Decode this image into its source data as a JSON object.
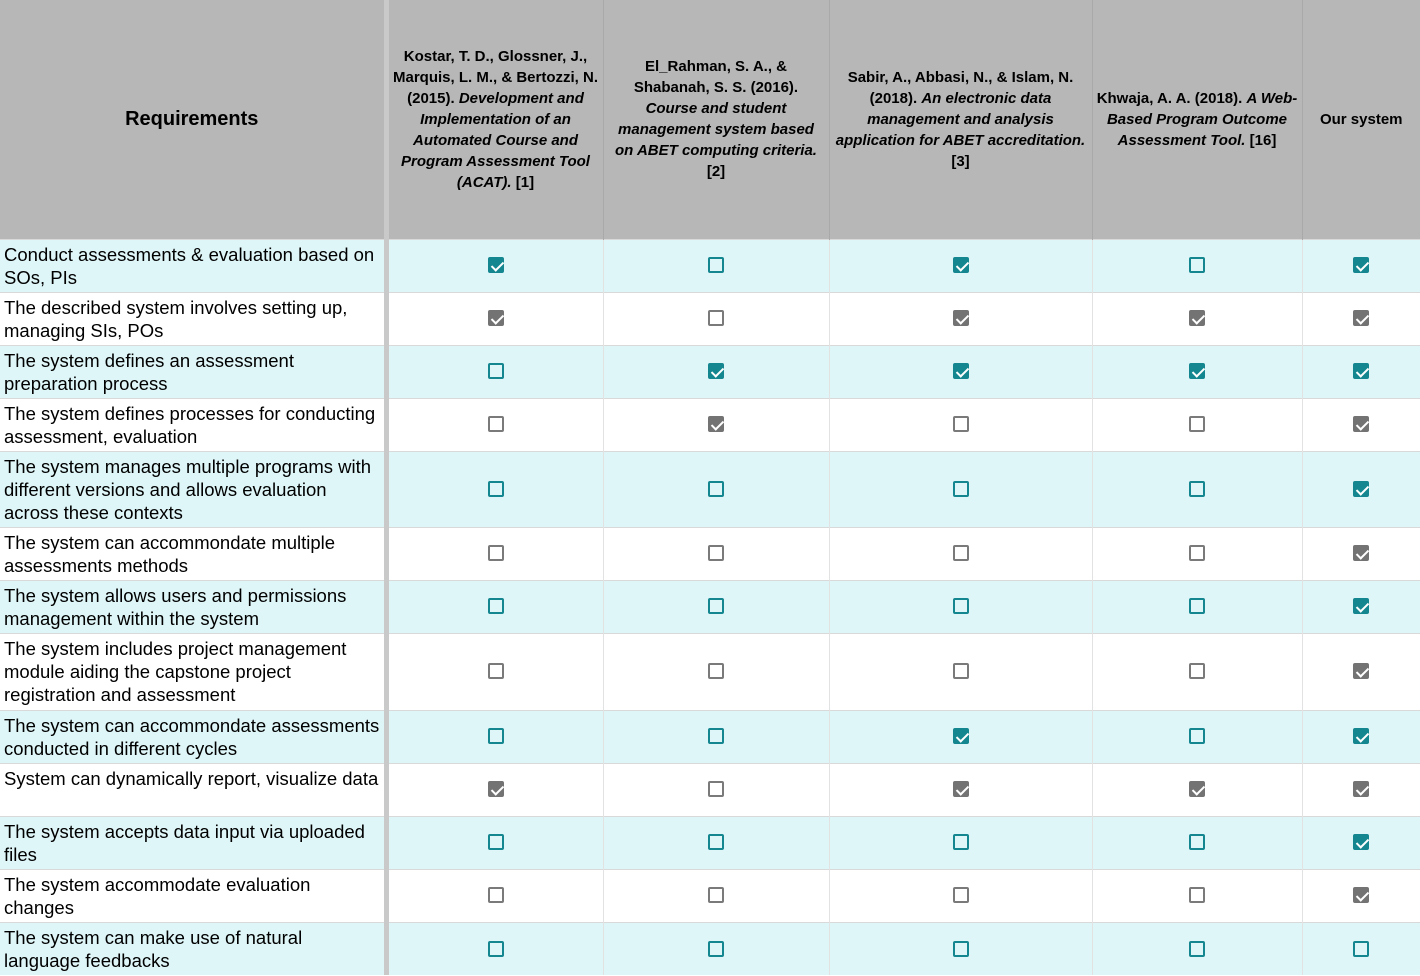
{
  "header": {
    "requirements_label": "Requirements",
    "columns": [
      {
        "authors": "Kostar, T. D., Glossner, J., Marquis, L. M., & Bertozzi, N. (2015). ",
        "title": "Development and Implementation of an Automated Course and Program Assessment Tool (ACAT).",
        "ref": " [1]"
      },
      {
        "authors": "El_Rahman, S. A., & Shabanah, S. S. (2016). ",
        "title": "Course and student management system based on ABET computing criteria.",
        "ref": " [2]"
      },
      {
        "authors": "Sabir, A., Abbasi, N., & Islam, N. (2018). ",
        "title": "An electronic data management and analysis application for ABET accreditation.",
        "ref": " [3]"
      },
      {
        "authors": "Khwaja, A. A. (2018). ",
        "title": "A Web-Based Program Outcome Assessment Tool.",
        "ref": " [16]"
      },
      {
        "authors": "Our system",
        "title": "",
        "ref": ""
      }
    ]
  },
  "rows": [
    {
      "requirement": "Conduct assessments & evaluation based on SOs, PIs",
      "checks": [
        true,
        false,
        true,
        false,
        true
      ]
    },
    {
      "requirement": "The described system involves setting up, managing SIs, POs",
      "checks": [
        true,
        false,
        true,
        true,
        true
      ]
    },
    {
      "requirement": "The system defines an assessment preparation process",
      "checks": [
        false,
        true,
        true,
        true,
        true
      ]
    },
    {
      "requirement": "The system defines processes for conducting assessment, evaluation",
      "checks": [
        false,
        true,
        false,
        false,
        true
      ]
    },
    {
      "requirement": "The system manages multiple programs with different versions and allows evaluation across these contexts",
      "checks": [
        false,
        false,
        false,
        false,
        true
      ]
    },
    {
      "requirement": "The system can accommondate multiple assessments methods",
      "checks": [
        false,
        false,
        false,
        false,
        true
      ]
    },
    {
      "requirement": "The system allows users and permissions management within the system",
      "checks": [
        false,
        false,
        false,
        false,
        true
      ]
    },
    {
      "requirement": "The system includes project management module aiding the capstone project registration and assessment",
      "checks": [
        false,
        false,
        false,
        false,
        true
      ]
    },
    {
      "requirement": "The system can accommondate assessments conducted in different cycles",
      "checks": [
        false,
        false,
        true,
        false,
        true
      ]
    },
    {
      "requirement": "System can dynamically report, visualize data",
      "checks": [
        true,
        false,
        true,
        true,
        true
      ]
    },
    {
      "requirement": "The system accepts data input via uploaded files",
      "checks": [
        false,
        false,
        false,
        false,
        true
      ]
    },
    {
      "requirement": "The system accommodate evaluation changes",
      "checks": [
        false,
        false,
        false,
        false,
        true
      ]
    },
    {
      "requirement": "The system can make use of natural language feedbacks",
      "checks": [
        false,
        false,
        false,
        false,
        false
      ]
    }
  ]
}
